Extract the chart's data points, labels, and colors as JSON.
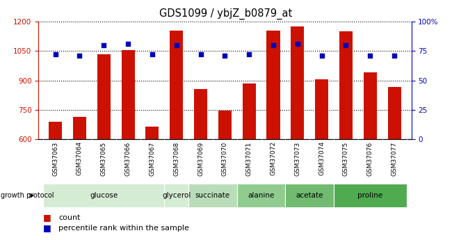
{
  "title": "GDS1099 / ybjZ_b0879_at",
  "samples": [
    "GSM37063",
    "GSM37064",
    "GSM37065",
    "GSM37066",
    "GSM37067",
    "GSM37068",
    "GSM37069",
    "GSM37070",
    "GSM37071",
    "GSM37072",
    "GSM37073",
    "GSM37074",
    "GSM37075",
    "GSM37076",
    "GSM37077"
  ],
  "counts": [
    690,
    715,
    1035,
    1055,
    665,
    1155,
    855,
    745,
    885,
    1155,
    1175,
    905,
    1150,
    940,
    865
  ],
  "percentiles": [
    72,
    71,
    80,
    81,
    72,
    80,
    72,
    71,
    72,
    80,
    81,
    71,
    80,
    71,
    71
  ],
  "ylim_left": [
    600,
    1200
  ],
  "ylim_right": [
    0,
    100
  ],
  "yticks_left": [
    600,
    750,
    900,
    1050,
    1200
  ],
  "yticks_right": [
    0,
    25,
    50,
    75,
    100
  ],
  "groups_info": [
    {
      "label": "glucose",
      "indices": [
        0,
        1,
        2,
        3,
        4
      ],
      "color": "#d4ecd4"
    },
    {
      "label": "glycerol",
      "indices": [
        5
      ],
      "color": "#d4ecd4"
    },
    {
      "label": "succinate",
      "indices": [
        6,
        7
      ],
      "color": "#b8ddb8"
    },
    {
      "label": "alanine",
      "indices": [
        8,
        9
      ],
      "color": "#90cc90"
    },
    {
      "label": "acetate",
      "indices": [
        10,
        11
      ],
      "color": "#70bb70"
    },
    {
      "label": "proline",
      "indices": [
        12,
        13,
        14
      ],
      "color": "#50aa50"
    }
  ],
  "bar_color": "#cc1100",
  "dot_color": "#0000bb",
  "bar_width": 0.55,
  "grid_linestyle": "dotted",
  "tick_color_left": "#cc1100",
  "tick_color_right": "#0000bb",
  "xtick_area_color": "#cccccc",
  "growth_protocol_label": "growth protocol",
  "legend_count": "count",
  "legend_percentile": "percentile rank within the sample"
}
